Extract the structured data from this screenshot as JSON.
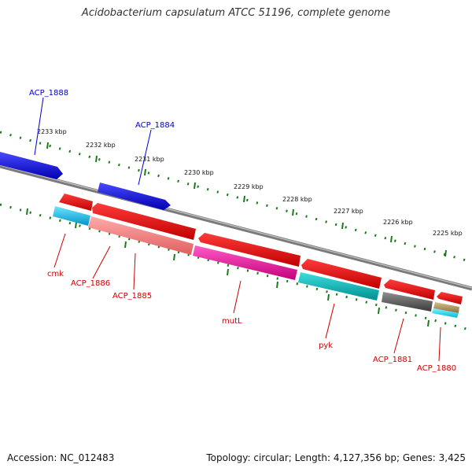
{
  "title": "Acidobacterium capsulatum ATCC 51196, complete genome",
  "footer": {
    "accession": "Accession: NC_012483",
    "summary": "Topology: circular; Length: 4,127,356 bp; Genes: 3,425"
  },
  "ticks": [
    "2233 kbp",
    "2232 kbp",
    "2231 kbp",
    "2230 kbp",
    "2229 kbp",
    "2228 kbp",
    "2227 kbp",
    "2226 kbp",
    "2225 kbp"
  ],
  "genes": [
    "ACP_1888",
    "ACP_1884",
    "cmk",
    "ACP_1886",
    "ACP_1885",
    "mutL",
    "pyk",
    "ACP_1881",
    "ACP_1880"
  ],
  "colors": {
    "forward_label": "#0000cc",
    "reverse_label": "#cc0000",
    "backbone": "#808080",
    "ticks": "#1a7a1a"
  }
}
